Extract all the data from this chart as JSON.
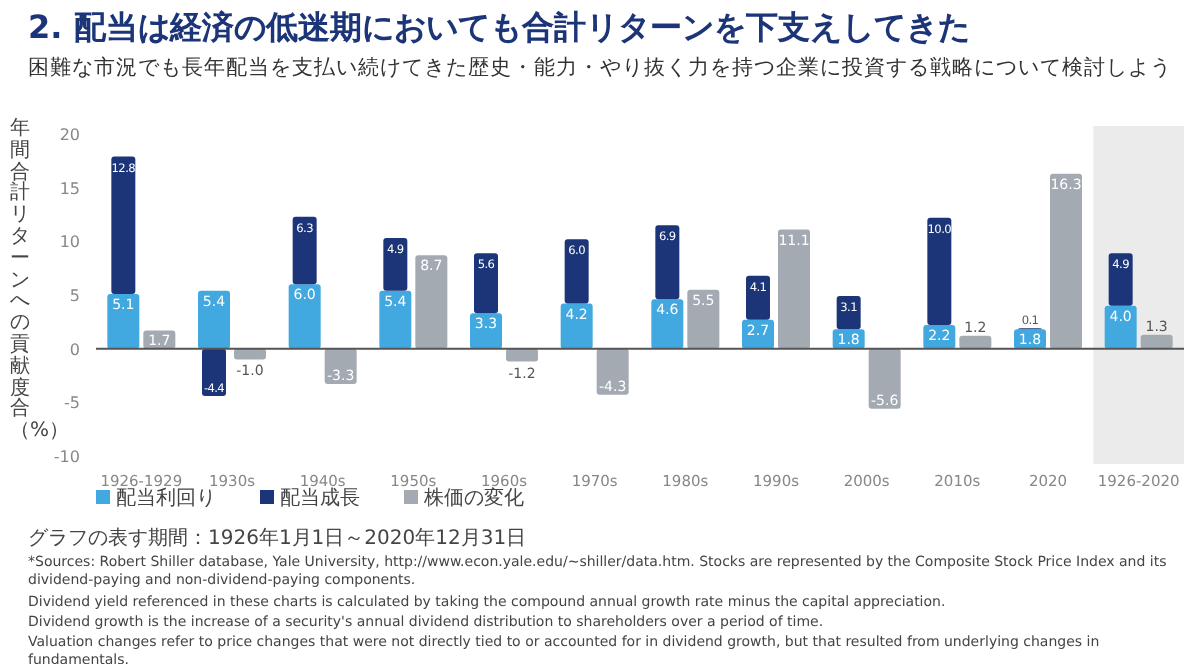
{
  "chart_data": {
    "type": "bar",
    "title": "2. 配当は経済の低迷期においても合計リターンを下支えしてきた",
    "subtitle": "困難な市況でも長年配当を支払い続けてきた歴史・能力・やり抜く力を持つ企業に投資する戦略について検討しよう",
    "ylabel": "年間合計リターンへの貢献度合（%）",
    "categories": [
      "1926-1929",
      "1930s",
      "1940s",
      "1950s",
      "1960s",
      "1970s",
      "1980s",
      "1990s",
      "2000s",
      "2010s",
      "2020",
      "1926-2020"
    ],
    "series": [
      {
        "name": "配当利回り",
        "color": "#41a8e0",
        "values": [
          5.1,
          5.4,
          6.0,
          5.4,
          3.3,
          4.2,
          4.6,
          2.7,
          1.8,
          2.2,
          1.8,
          4.0
        ],
        "value_labels": [
          "5.1",
          "5.4",
          "6.0",
          "5.4",
          "3.3",
          "4.2",
          "4.6",
          "2.7",
          "1.8",
          "2.2",
          "1.8",
          "4.0"
        ]
      },
      {
        "name": "配当成長",
        "color": "#1c3578",
        "base": [
          5.1,
          0,
          6.0,
          5.4,
          3.3,
          4.2,
          4.6,
          2.7,
          1.8,
          2.2,
          1.8,
          4.0
        ],
        "values": [
          12.8,
          -4.4,
          6.3,
          4.9,
          5.6,
          6.0,
          6.9,
          4.1,
          3.1,
          10.0,
          0.1,
          4.9
        ],
        "value_labels": [
          "12.8",
          "-4.4",
          "6.3",
          "4.9",
          "5.6",
          "6.0",
          "6.9",
          "4.1",
          "3.1",
          "10.0",
          "0.1",
          "4.9"
        ]
      },
      {
        "name": "株価の変化",
        "color": "#a3aab2",
        "values": [
          1.7,
          -1.0,
          -3.3,
          8.7,
          -1.2,
          -4.3,
          5.5,
          11.1,
          -5.6,
          1.2,
          16.3,
          1.3
        ],
        "value_labels": [
          "1.7",
          "-1.0",
          "-3.3",
          "8.7",
          "-1.2",
          "-4.3",
          "5.5",
          "11.1",
          "-5.6",
          "1.2",
          "16.3",
          "1.3"
        ]
      }
    ],
    "ylim": [
      -10,
      20
    ],
    "yticks": [
      -10,
      -5,
      0,
      5,
      10,
      15,
      20
    ],
    "bands": [
      {
        "axis": "x",
        "from": "1926-2020",
        "to": "1926-2020",
        "color": "#ebebeb"
      }
    ],
    "legend": "bottom left",
    "annotations": [
      "グラフの表す期間：1926年1月1日～2020年12月31日",
      "*Sources: Robert Shiller database, Yale University, http://www.econ.yale.edu/~shiller/data.htm. Stocks are represented by the Composite Stock Price Index and its dividend-paying and non-dividend-paying components.",
      "Dividend yield referenced in these charts is calculated by taking the compound annual growth rate minus the capital appreciation.",
      "Dividend growth is the increase of a security's annual dividend distribution to shareholders over a period of time.",
      "Valuation changes refer to price changes that were not directly tied to or accounted for in dividend growth, but that resulted from underlying changes in fundamentals."
    ]
  }
}
